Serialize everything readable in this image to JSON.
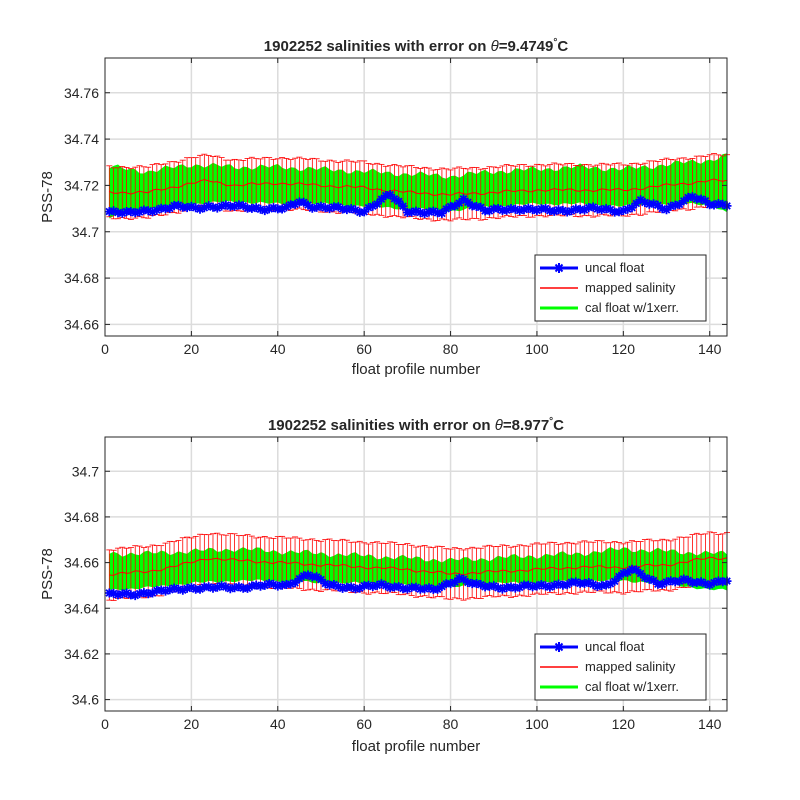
{
  "chart_data": [
    {
      "type": "line",
      "title_prefix": "1902252 salinities with error on ",
      "title_symbol": "θ",
      "title_value": "=9.4749",
      "title_degree": "°",
      "title_unit": "C",
      "xlabel": "float profile number",
      "ylabel": "PSS-78",
      "xlim": [
        0,
        144
      ],
      "ylim": [
        34.655,
        34.775
      ],
      "xticks": [
        0,
        20,
        40,
        60,
        80,
        100,
        120,
        140
      ],
      "xtick_labels": [
        "0",
        "20",
        "40",
        "60",
        "80",
        "100",
        "120",
        "140"
      ],
      "yticks": [
        34.66,
        34.68,
        34.7,
        34.72,
        34.74,
        34.76
      ],
      "ytick_labels": [
        "34.66",
        "34.68",
        "34.7",
        "34.72",
        "34.74",
        "34.76"
      ],
      "grid": true,
      "legend_position": "bottom-right",
      "legend": [
        "uncal float",
        "mapped salinity",
        "cal float w/1xerr."
      ],
      "series": [
        {
          "name": "uncal float",
          "color": "#0000ff",
          "x": [
            1,
            6,
            10,
            16,
            21,
            24,
            30,
            36,
            42,
            45,
            48,
            54,
            60,
            66,
            70,
            78,
            83,
            88,
            96,
            104,
            112,
            120,
            124,
            130,
            136,
            140,
            144
          ],
          "values": [
            34.709,
            34.708,
            34.709,
            34.711,
            34.71,
            34.711,
            34.711,
            34.71,
            34.71,
            34.713,
            34.711,
            34.71,
            34.709,
            34.716,
            34.709,
            34.708,
            34.714,
            34.709,
            34.71,
            34.709,
            34.71,
            34.709,
            34.713,
            34.71,
            34.715,
            34.712,
            34.712
          ]
        },
        {
          "name": "mapped salinity",
          "color": "#ff0000",
          "error": 0.011,
          "x": [
            1,
            10,
            20,
            24,
            30,
            40,
            50,
            60,
            70,
            80,
            90,
            100,
            110,
            120,
            130,
            140,
            144
          ],
          "values": [
            34.717,
            34.717,
            34.721,
            34.722,
            34.72,
            34.721,
            34.72,
            34.719,
            34.717,
            34.716,
            34.717,
            34.718,
            34.718,
            34.718,
            34.72,
            34.722,
            34.722
          ]
        },
        {
          "name": "cal float w/1xerr.",
          "color": "#00ff00",
          "x": [
            1,
            10,
            20,
            30,
            40,
            50,
            60,
            70,
            80,
            90,
            100,
            110,
            120,
            130,
            140,
            144
          ],
          "lower": [
            34.706,
            34.71,
            34.712,
            34.713,
            34.712,
            34.712,
            34.711,
            34.71,
            34.709,
            34.711,
            34.712,
            34.712,
            34.711,
            34.712,
            34.712,
            34.708
          ],
          "upper": [
            34.728,
            34.726,
            34.729,
            34.728,
            34.728,
            34.727,
            34.726,
            34.725,
            34.724,
            34.726,
            34.727,
            34.728,
            34.727,
            34.729,
            34.731,
            34.733
          ]
        }
      ]
    },
    {
      "type": "line",
      "title_prefix": "1902252 salinities with error on ",
      "title_symbol": "θ",
      "title_value": "=8.977",
      "title_degree": "°",
      "title_unit": "C",
      "xlabel": "float profile number",
      "ylabel": "PSS-78",
      "xlim": [
        0,
        144
      ],
      "ylim": [
        34.595,
        34.715
      ],
      "xticks": [
        0,
        20,
        40,
        60,
        80,
        100,
        120,
        140
      ],
      "xtick_labels": [
        "0",
        "20",
        "40",
        "60",
        "80",
        "100",
        "120",
        "140"
      ],
      "yticks": [
        34.6,
        34.62,
        34.64,
        34.66,
        34.68,
        34.7
      ],
      "ytick_labels": [
        "34.6",
        "34.62",
        "34.64",
        "34.66",
        "34.68",
        "34.7"
      ],
      "grid": true,
      "legend_position": "bottom-right",
      "legend": [
        "uncal float",
        "mapped salinity",
        "cal float w/1xerr."
      ],
      "series": [
        {
          "name": "uncal float",
          "color": "#0000ff",
          "x": [
            1,
            6,
            10,
            16,
            20,
            24,
            30,
            36,
            42,
            47,
            52,
            58,
            64,
            70,
            76,
            82,
            86,
            94,
            102,
            110,
            116,
            122,
            128,
            134,
            140,
            144
          ],
          "values": [
            34.646,
            34.646,
            34.647,
            34.648,
            34.649,
            34.649,
            34.649,
            34.65,
            34.65,
            34.655,
            34.65,
            34.649,
            34.65,
            34.649,
            34.648,
            34.653,
            34.65,
            34.649,
            34.65,
            34.651,
            34.65,
            34.657,
            34.651,
            34.652,
            34.651,
            34.652
          ]
        },
        {
          "name": "mapped salinity",
          "color": "#ff0000",
          "error": 0.011,
          "x": [
            1,
            10,
            20,
            24,
            30,
            40,
            50,
            60,
            70,
            80,
            90,
            100,
            110,
            120,
            130,
            140,
            144
          ],
          "values": [
            34.655,
            34.656,
            34.66,
            34.662,
            34.661,
            34.66,
            34.659,
            34.658,
            34.657,
            34.655,
            34.656,
            34.657,
            34.658,
            34.658,
            34.659,
            34.662,
            34.662
          ]
        },
        {
          "name": "cal float w/1xerr.",
          "color": "#00ff00",
          "x": [
            1,
            10,
            20,
            30,
            40,
            50,
            60,
            70,
            80,
            90,
            100,
            110,
            120,
            130,
            140,
            144
          ],
          "lower": [
            34.648,
            34.649,
            34.651,
            34.652,
            34.652,
            34.651,
            34.651,
            34.65,
            34.649,
            34.651,
            34.651,
            34.652,
            34.652,
            34.651,
            34.648,
            34.648
          ],
          "upper": [
            34.664,
            34.664,
            34.665,
            34.666,
            34.665,
            34.664,
            34.663,
            34.662,
            34.661,
            34.662,
            34.663,
            34.664,
            34.666,
            34.665,
            34.664,
            34.664
          ]
        }
      ]
    }
  ]
}
